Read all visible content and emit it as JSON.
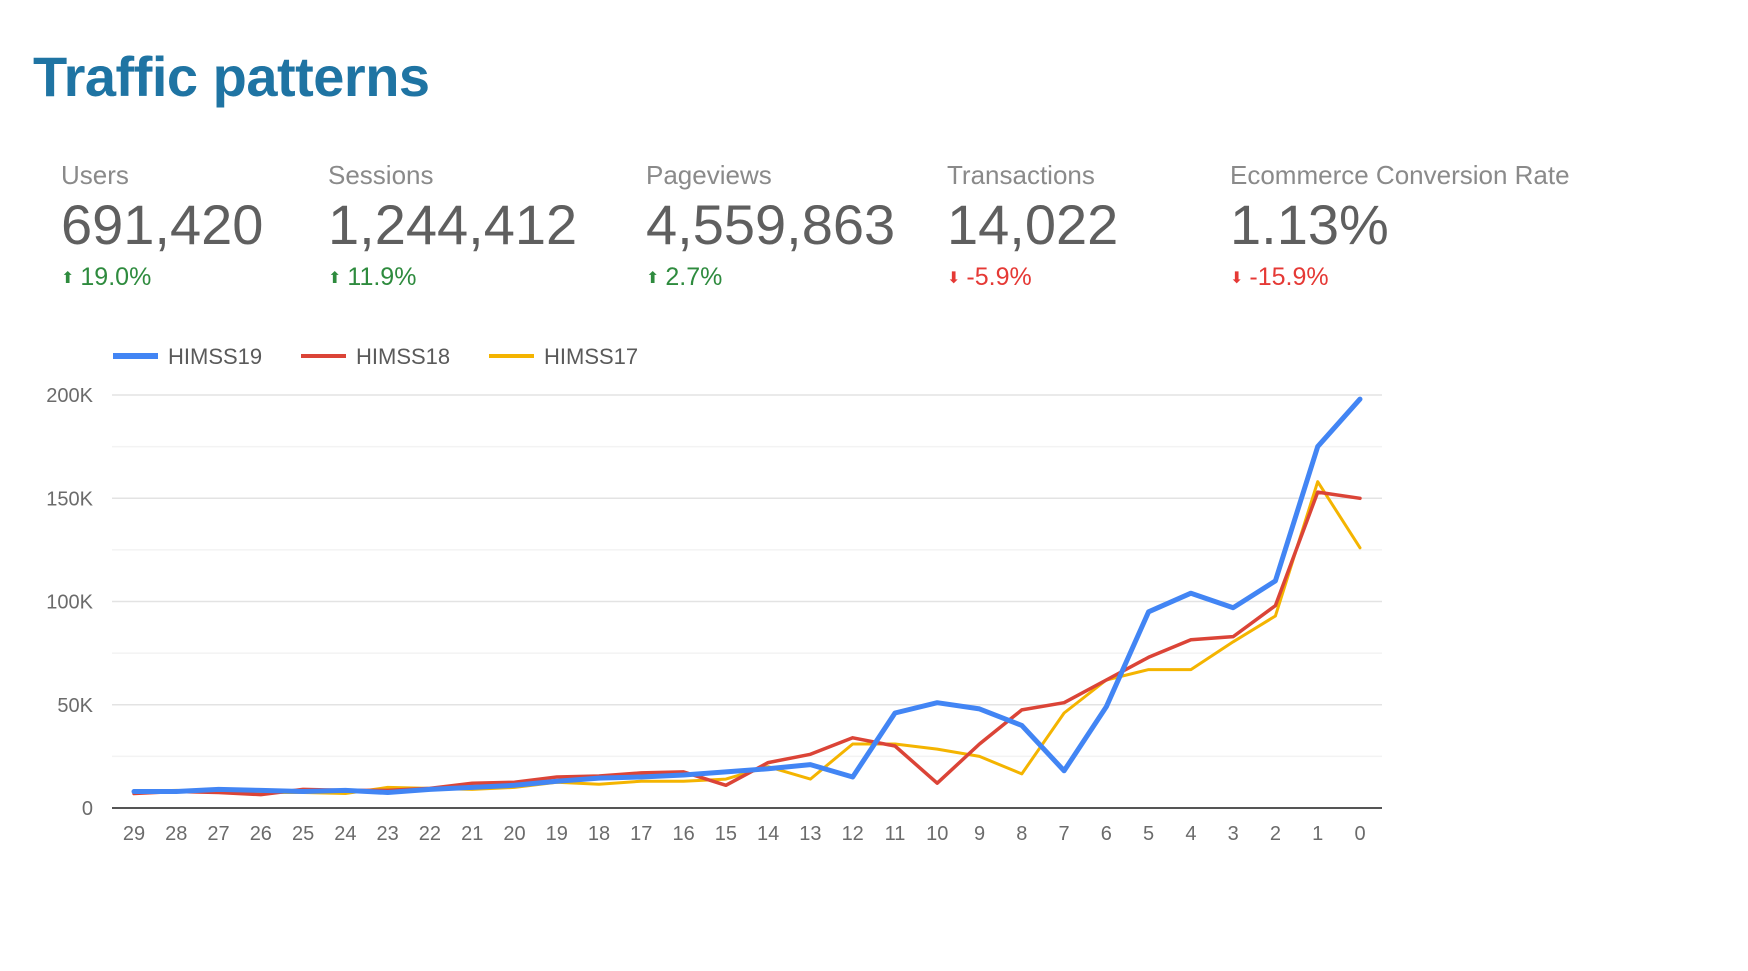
{
  "title": "Traffic patterns",
  "metrics": [
    {
      "label": "Users",
      "value": "691,420",
      "delta": "19.0%",
      "direction": "up"
    },
    {
      "label": "Sessions",
      "value": "1,244,412",
      "delta": "11.9%",
      "direction": "up"
    },
    {
      "label": "Pageviews",
      "value": "4,559,863",
      "delta": "2.7%",
      "direction": "up"
    },
    {
      "label": "Transactions",
      "value": "14,022",
      "delta": "-5.9%",
      "direction": "down"
    },
    {
      "label": "Ecommerce Conversion Rate",
      "value": "1.13%",
      "delta": "-15.9%",
      "direction": "down"
    }
  ],
  "chart_data": {
    "type": "line",
    "title": "",
    "xlabel": "",
    "ylabel": "",
    "ylim": [
      0,
      200000
    ],
    "y_ticks": [
      0,
      50000,
      100000,
      150000,
      200000
    ],
    "y_tick_labels": [
      "0",
      "50K",
      "100K",
      "150K",
      "200K"
    ],
    "categories": [
      "29",
      "28",
      "27",
      "26",
      "25",
      "24",
      "23",
      "22",
      "21",
      "20",
      "19",
      "18",
      "17",
      "16",
      "15",
      "14",
      "13",
      "12",
      "11",
      "10",
      "9",
      "8",
      "7",
      "6",
      "5",
      "4",
      "3",
      "2",
      "1",
      "0"
    ],
    "grid": true,
    "legend_position": "top-left",
    "series": [
      {
        "name": "HIMSS19",
        "color": "#4285f4",
        "values": [
          8000,
          8000,
          9000,
          8500,
          8000,
          8500,
          7500,
          9000,
          10000,
          11000,
          13000,
          14500,
          15000,
          16000,
          17500,
          19000,
          21000,
          15000,
          46000,
          51000,
          48000,
          40000,
          18000,
          49000,
          95000,
          104000,
          97000,
          110000,
          175000,
          198000
        ]
      },
      {
        "name": "HIMSS18",
        "color": "#db4437",
        "values": [
          7000,
          8000,
          7500,
          6500,
          9000,
          8500,
          8500,
          9500,
          12000,
          12500,
          15000,
          15500,
          17000,
          17500,
          11000,
          22000,
          26000,
          34000,
          30000,
          12000,
          31000,
          47500,
          51000,
          62000,
          73000,
          81500,
          83000,
          98000,
          153000,
          150000
        ]
      },
      {
        "name": "HIMSS17",
        "color": "#f4b400",
        "values": [
          8000,
          8500,
          7500,
          7500,
          7500,
          7000,
          10000,
          9500,
          9000,
          10000,
          12500,
          11500,
          13000,
          13000,
          14000,
          20000,
          14000,
          31000,
          31000,
          28500,
          25000,
          16500,
          46000,
          62000,
          67000,
          67000,
          80500,
          93000,
          158000,
          126000
        ]
      }
    ]
  }
}
